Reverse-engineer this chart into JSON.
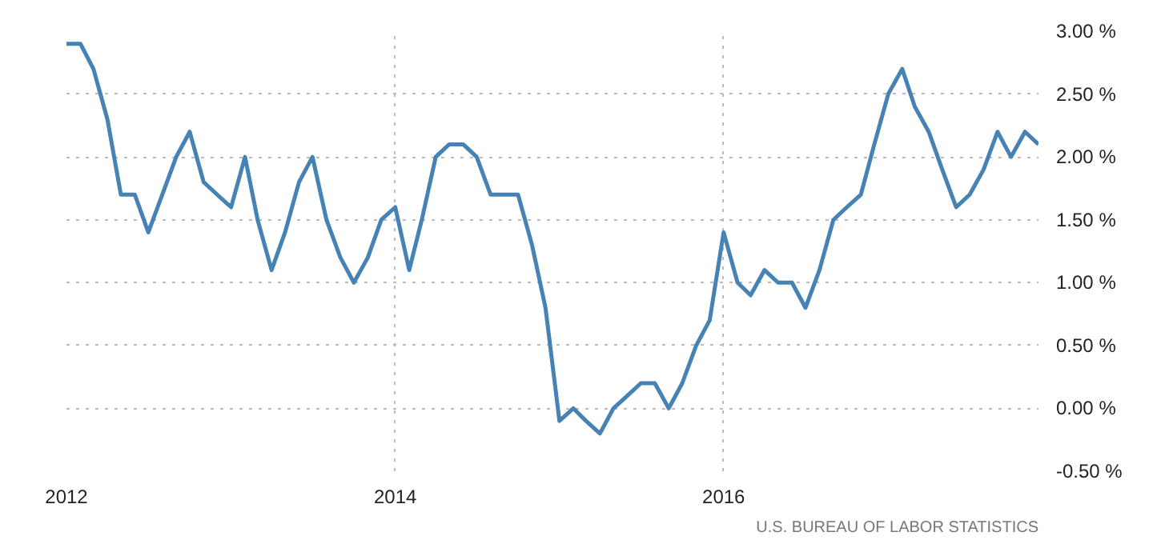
{
  "chart_data": {
    "type": "line",
    "x": [
      "2012-01",
      "2012-02",
      "2012-03",
      "2012-04",
      "2012-05",
      "2012-06",
      "2012-07",
      "2012-08",
      "2012-09",
      "2012-10",
      "2012-11",
      "2012-12",
      "2013-01",
      "2013-02",
      "2013-03",
      "2013-04",
      "2013-05",
      "2013-06",
      "2013-07",
      "2013-08",
      "2013-09",
      "2013-10",
      "2013-11",
      "2013-12",
      "2014-01",
      "2014-02",
      "2014-03",
      "2014-04",
      "2014-05",
      "2014-06",
      "2014-07",
      "2014-08",
      "2014-09",
      "2014-10",
      "2014-11",
      "2014-12",
      "2015-01",
      "2015-02",
      "2015-03",
      "2015-04",
      "2015-05",
      "2015-06",
      "2015-07",
      "2015-08",
      "2015-09",
      "2015-10",
      "2015-11",
      "2015-12",
      "2016-01",
      "2016-02",
      "2016-03",
      "2016-04",
      "2016-05",
      "2016-06",
      "2016-07",
      "2016-08",
      "2016-09",
      "2016-10",
      "2016-11",
      "2016-12",
      "2017-01",
      "2017-02",
      "2017-03",
      "2017-04",
      "2017-05",
      "2017-06",
      "2017-07",
      "2017-08",
      "2017-09",
      "2017-10",
      "2017-11",
      "2017-12"
    ],
    "series": [
      {
        "color": "#4682b4",
        "values": [
          2.9,
          2.9,
          2.7,
          2.3,
          1.7,
          1.7,
          1.4,
          1.7,
          2.0,
          2.2,
          1.8,
          1.7,
          1.6,
          2.0,
          1.5,
          1.1,
          1.4,
          1.8,
          2.0,
          1.5,
          1.2,
          1.0,
          1.2,
          1.5,
          1.6,
          1.1,
          1.5,
          2.0,
          2.1,
          2.1,
          2.0,
          1.7,
          1.7,
          1.7,
          1.3,
          0.8,
          -0.1,
          0.0,
          -0.1,
          -0.2,
          0.0,
          0.1,
          0.2,
          0.2,
          0.0,
          0.2,
          0.5,
          0.7,
          1.4,
          1.0,
          0.9,
          1.1,
          1.0,
          1.0,
          0.8,
          1.1,
          1.5,
          1.6,
          1.7,
          2.1,
          2.5,
          2.7,
          2.4,
          2.2,
          1.9,
          1.6,
          1.7,
          1.9,
          2.2,
          2.0,
          2.2,
          2.1
        ]
      }
    ],
    "xlim": [
      "2012-01",
      "2017-12"
    ],
    "xticks": [
      "2012",
      "2014",
      "2016"
    ],
    "ylim": [
      -0.5,
      3.0
    ],
    "yticks": [
      {
        "value": -0.5,
        "label": "-0.50 %"
      },
      {
        "value": 0,
        "label": "0.00 %"
      },
      {
        "value": 0.5,
        "label": "0.50 %"
      },
      {
        "value": 1.0,
        "label": "1.00 %"
      },
      {
        "value": 1.5,
        "label": "1.50 %"
      },
      {
        "value": 2.0,
        "label": "2.00 %"
      },
      {
        "value": 2.5,
        "label": "2.50 %"
      },
      {
        "value": 3.0,
        "label": "3.00 %"
      }
    ],
    "grid": true,
    "line_style": "solid",
    "annotations": [
      "U.S. BUREAU OF LABOR STATISTICS"
    ]
  }
}
